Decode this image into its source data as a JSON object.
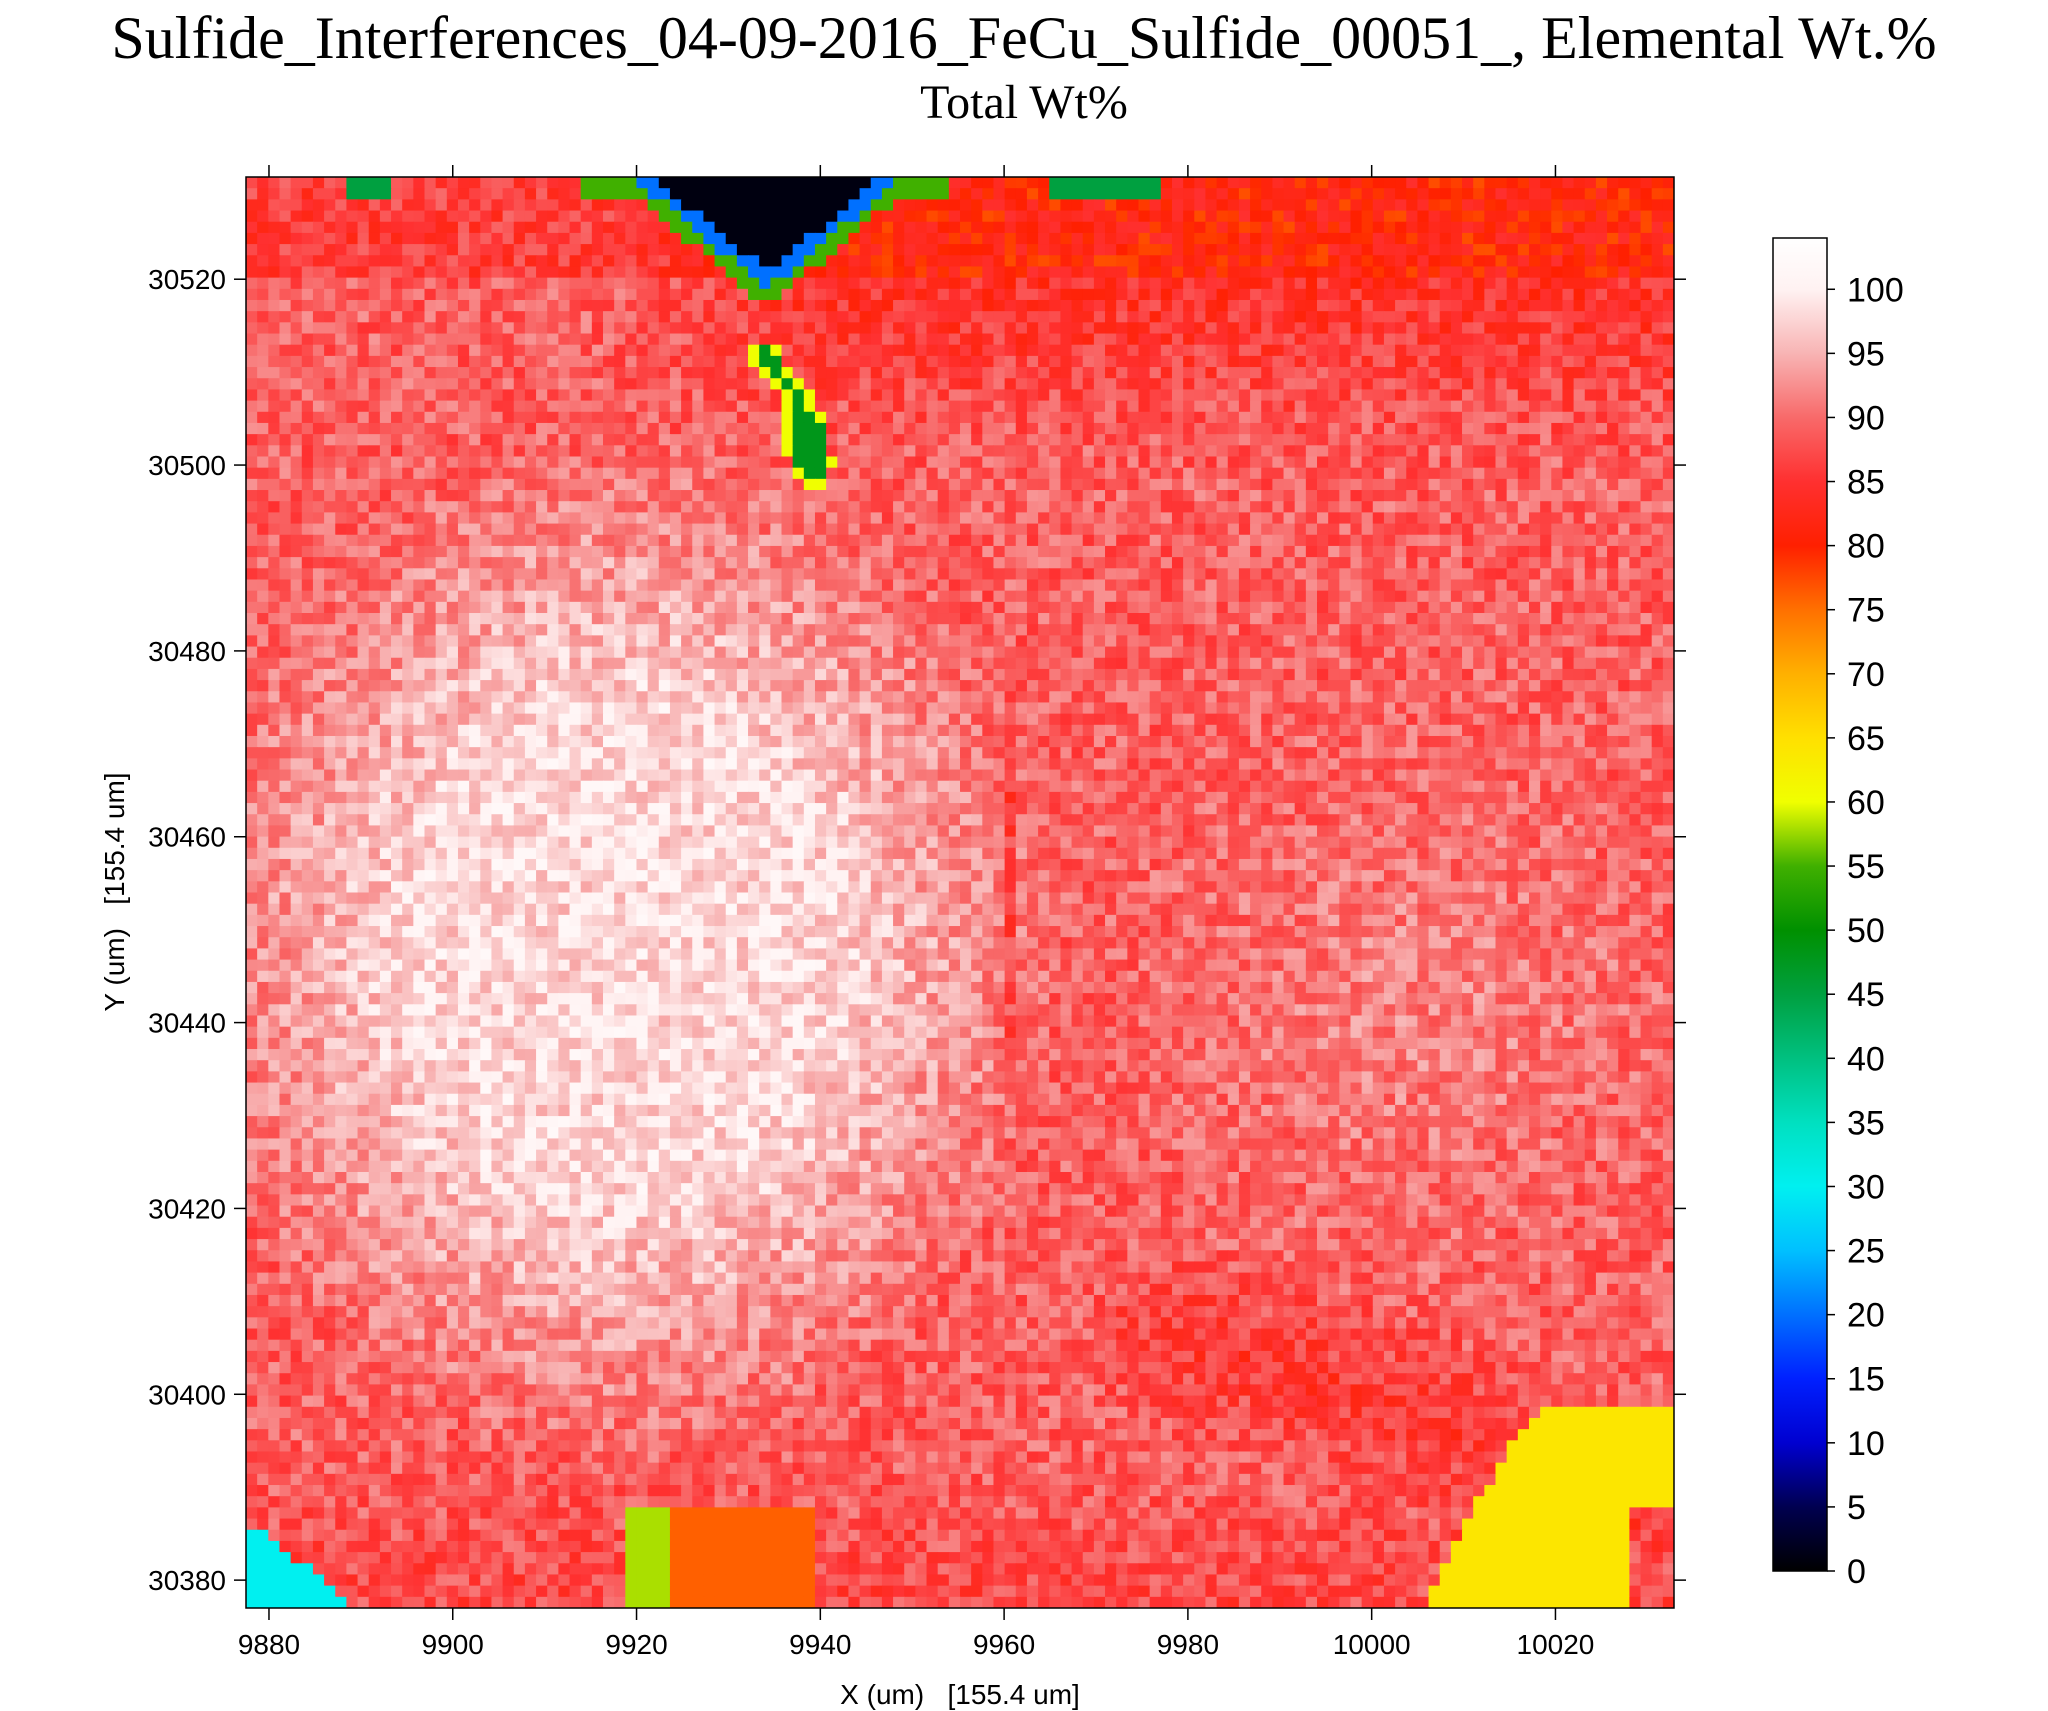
{
  "chart_data": {
    "type": "heatmap",
    "title": "Sulfide_Interferences_04-09-2016_FeCu_Sulfide_00051_, Elemental Wt.%",
    "subtitle": "Total Wt%",
    "xlabel": "X (um)   [155.4 um]",
    "ylabel": "Y (um)   [155.4 um]",
    "xlim": [
      9877.5,
      10032.9
    ],
    "ylim": [
      30377,
      30531
    ],
    "x_ticks": [
      9880,
      9900,
      9920,
      9940,
      9960,
      9980,
      10000,
      10020
    ],
    "x_tick_labels": [
      "9880",
      "9900",
      "9920",
      "9940",
      "9960",
      "9980",
      "10000",
      "10020"
    ],
    "y_ticks": [
      30380,
      30400,
      30420,
      30440,
      30460,
      30480,
      30500,
      30520
    ],
    "y_tick_labels": [
      "30380",
      "30400",
      "30420",
      "30440",
      "30460",
      "30480",
      "30500",
      "30520"
    ],
    "colorbar": {
      "min": 0,
      "max": 104,
      "ticks": [
        0,
        5,
        10,
        15,
        20,
        25,
        30,
        35,
        40,
        45,
        50,
        55,
        60,
        65,
        70,
        75,
        80,
        85,
        90,
        95,
        100
      ],
      "tick_labels": [
        "0",
        "5",
        "10",
        "15",
        "20",
        "25",
        "30",
        "35",
        "40",
        "45",
        "50",
        "55",
        "60",
        "65",
        "70",
        "75",
        "80",
        "85",
        "90",
        "95",
        "100"
      ],
      "color_stops": [
        {
          "value": 0,
          "color": "#000000"
        },
        {
          "value": 5,
          "color": "#000050"
        },
        {
          "value": 10,
          "color": "#0000d0"
        },
        {
          "value": 15,
          "color": "#0020ff"
        },
        {
          "value": 20,
          "color": "#0070ff"
        },
        {
          "value": 25,
          "color": "#00c0ff"
        },
        {
          "value": 30,
          "color": "#00f0f0"
        },
        {
          "value": 35,
          "color": "#00e0c0"
        },
        {
          "value": 40,
          "color": "#00c080"
        },
        {
          "value": 45,
          "color": "#00a040"
        },
        {
          "value": 50,
          "color": "#009000"
        },
        {
          "value": 55,
          "color": "#40b000"
        },
        {
          "value": 60,
          "color": "#f0ff00"
        },
        {
          "value": 65,
          "color": "#ffe000"
        },
        {
          "value": 70,
          "color": "#ffb000"
        },
        {
          "value": 75,
          "color": "#ff7000"
        },
        {
          "value": 80,
          "color": "#ff2000"
        },
        {
          "value": 85,
          "color": "#ff3030"
        },
        {
          "value": 90,
          "color": "#f86a6a"
        },
        {
          "value": 95,
          "color": "#f8b4b4"
        },
        {
          "value": 100,
          "color": "#fff2f2"
        },
        {
          "value": 104,
          "color": "#ffffff"
        }
      ]
    },
    "grid": false,
    "regions": [
      {
        "description": "matrix",
        "approx_value": 90
      },
      {
        "description": "bright grain",
        "approx_value": 98
      },
      {
        "description": "upper band",
        "approx_value": 84
      },
      {
        "description": "void at top",
        "approx_value": 0
      },
      {
        "description": "inclusion",
        "approx_value": 50
      },
      {
        "description": "lower-right phase",
        "approx_value": 65
      }
    ]
  }
}
